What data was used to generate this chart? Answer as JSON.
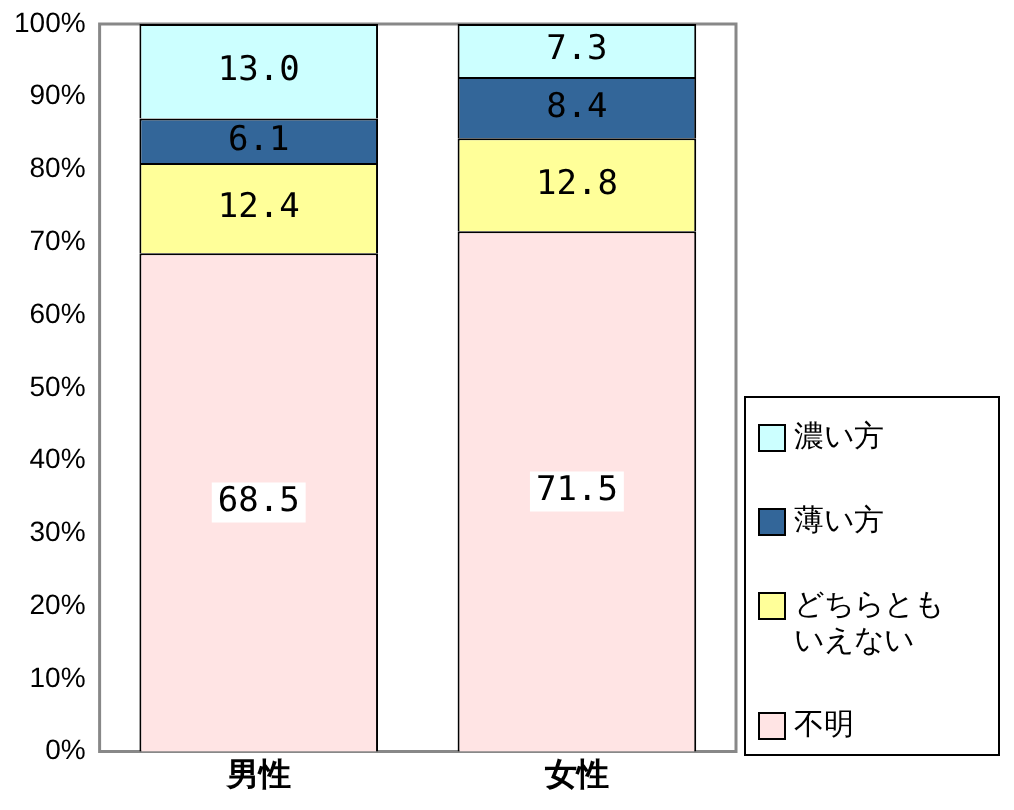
{
  "chart_data": {
    "type": "bar",
    "stacked": true,
    "categories": [
      "男性",
      "女性"
    ],
    "ylim": [
      0,
      100
    ],
    "yticks": [
      {
        "value": 0,
        "label": "0%"
      },
      {
        "value": 10,
        "label": "10%"
      },
      {
        "value": 20,
        "label": "20%"
      },
      {
        "value": 30,
        "label": "30%"
      },
      {
        "value": 40,
        "label": "40%"
      },
      {
        "value": 50,
        "label": "50%"
      },
      {
        "value": 60,
        "label": "60%"
      },
      {
        "value": 70,
        "label": "70%"
      },
      {
        "value": 80,
        "label": "80%"
      },
      {
        "value": 90,
        "label": "90%"
      },
      {
        "value": 100,
        "label": "100%"
      }
    ],
    "grid": false,
    "legend": "right",
    "series": [
      {
        "name": "不明",
        "color": "#ffe4e4",
        "values": [
          68.5,
          71.5
        ],
        "value_labels": [
          "68.5",
          "71.5"
        ]
      },
      {
        "name": "どちらともいえない",
        "color": "#ffff99",
        "values": [
          12.4,
          12.8
        ],
        "value_labels": [
          "12.4",
          "12.8"
        ]
      },
      {
        "name": "薄い方",
        "color": "#336699",
        "values": [
          6.1,
          8.4
        ],
        "value_labels": [
          "6.1",
          "8.4"
        ]
      },
      {
        "name": "濃い方",
        "color": "#ccffff",
        "values": [
          13.0,
          7.3
        ],
        "value_labels": [
          "13.0",
          "7.3"
        ]
      }
    ]
  }
}
